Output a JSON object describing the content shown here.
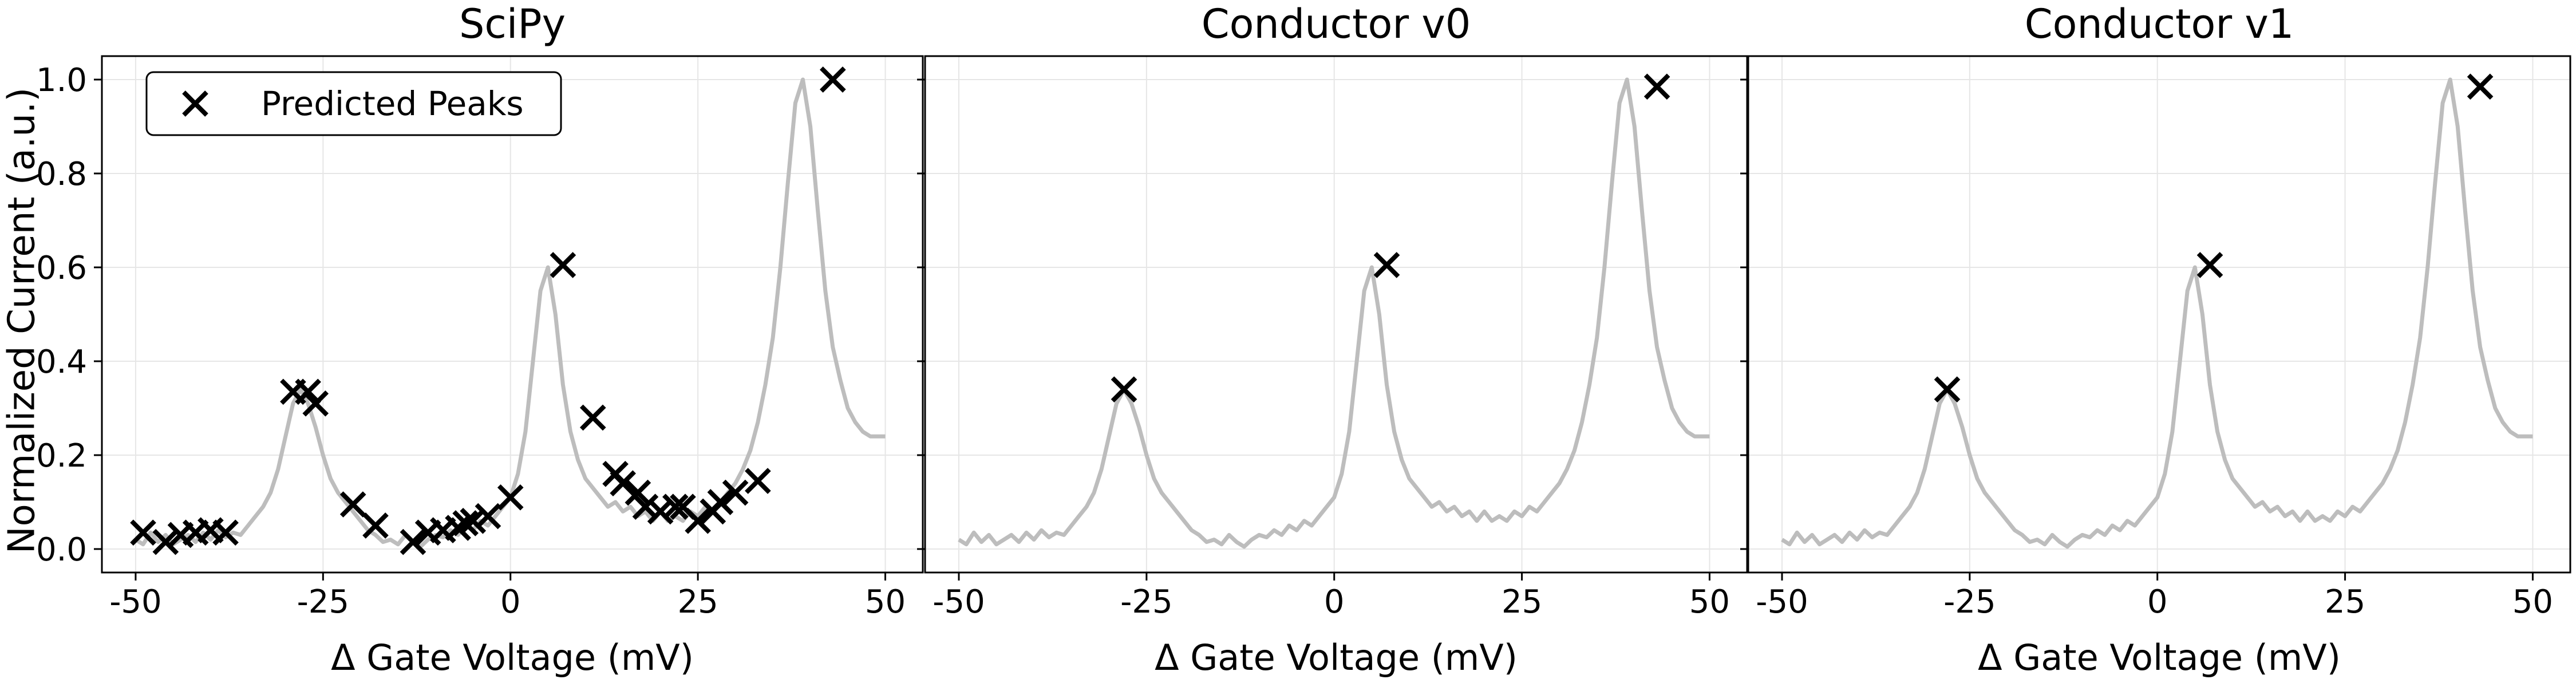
{
  "figure": {
    "ylabel": "Normalized Current (a.u.)",
    "legend_label": "Predicted Peaks",
    "legend_location": "upper-left"
  },
  "colors": {
    "trace": "#bdbdbd",
    "marker": "#000000",
    "grid": "#e6e6e6"
  },
  "trace": {
    "x": [
      -50,
      -49,
      -48,
      -47,
      -46,
      -45,
      -44,
      -43,
      -42,
      -41,
      -40,
      -39,
      -38,
      -37,
      -36,
      -35,
      -34,
      -33,
      -32,
      -31,
      -30,
      -29,
      -28,
      -27,
      -26,
      -25,
      -24,
      -23,
      -22,
      -21,
      -20,
      -19,
      -18,
      -17,
      -16,
      -15,
      -14,
      -13,
      -12,
      -11,
      -10,
      -9,
      -8,
      -7,
      -6,
      -5,
      -4,
      -3,
      -2,
      -1,
      0,
      1,
      2,
      3,
      4,
      5,
      6,
      7,
      8,
      9,
      10,
      11,
      12,
      13,
      14,
      15,
      16,
      17,
      18,
      19,
      20,
      21,
      22,
      23,
      24,
      25,
      26,
      27,
      28,
      29,
      30,
      31,
      32,
      33,
      34,
      35,
      36,
      37,
      38,
      39,
      40,
      41,
      42,
      43,
      44,
      45,
      46,
      47,
      48,
      49,
      50
    ],
    "y": [
      0.02,
      0.01,
      0.035,
      0.015,
      0.03,
      0.01,
      0.02,
      0.03,
      0.015,
      0.035,
      0.02,
      0.04,
      0.025,
      0.035,
      0.03,
      0.05,
      0.07,
      0.09,
      0.12,
      0.17,
      0.24,
      0.31,
      0.34,
      0.31,
      0.26,
      0.2,
      0.15,
      0.12,
      0.1,
      0.08,
      0.06,
      0.04,
      0.03,
      0.015,
      0.02,
      0.01,
      0.03,
      0.015,
      0.005,
      0.02,
      0.03,
      0.025,
      0.04,
      0.03,
      0.05,
      0.04,
      0.06,
      0.05,
      0.07,
      0.09,
      0.11,
      0.16,
      0.25,
      0.4,
      0.55,
      0.6,
      0.5,
      0.35,
      0.25,
      0.19,
      0.15,
      0.13,
      0.11,
      0.09,
      0.1,
      0.08,
      0.09,
      0.07,
      0.08,
      0.06,
      0.08,
      0.06,
      0.07,
      0.06,
      0.08,
      0.07,
      0.09,
      0.08,
      0.1,
      0.12,
      0.14,
      0.17,
      0.21,
      0.27,
      0.35,
      0.45,
      0.6,
      0.78,
      0.95,
      1.0,
      0.9,
      0.72,
      0.55,
      0.43,
      0.36,
      0.3,
      0.27,
      0.25,
      0.24,
      0.24,
      0.24
    ]
  },
  "chart_data": [
    {
      "type": "scatter",
      "title": "SciPy",
      "xlabel": "Δ Gate Voltage (mV)",
      "ylabel": "Normalized Current (a.u.)",
      "xlim": [
        -50,
        50
      ],
      "ylim": [
        0,
        1
      ],
      "xticks": [
        "-50",
        "-25",
        "0",
        "25",
        "50"
      ],
      "yticks": [
        "0.0",
        "0.2",
        "0.4",
        "0.6",
        "0.8",
        "1.0"
      ],
      "grid": true,
      "legend": {
        "location": "upper-left",
        "entries": [
          "Predicted Peaks"
        ]
      },
      "series": [
        {
          "name": "Predicted Peaks",
          "x": [
            -49,
            -46,
            -44,
            -42,
            -40,
            -38,
            -29,
            -27,
            -26,
            -21,
            -18,
            -13,
            -11,
            -9,
            -7,
            -6,
            -5,
            -3,
            0,
            7,
            11,
            14,
            15,
            17,
            18,
            20,
            22,
            23,
            25,
            27,
            28,
            30,
            33,
            43
          ],
          "y": [
            0.035,
            0.015,
            0.03,
            0.035,
            0.04,
            0.035,
            0.335,
            0.335,
            0.31,
            0.095,
            0.05,
            0.015,
            0.035,
            0.04,
            0.045,
            0.055,
            0.06,
            0.07,
            0.11,
            0.605,
            0.28,
            0.16,
            0.14,
            0.12,
            0.09,
            0.08,
            0.09,
            0.09,
            0.06,
            0.08,
            0.1,
            0.12,
            0.145,
            1.0
          ]
        }
      ]
    },
    {
      "type": "scatter",
      "title": "Conductor v0",
      "xlabel": "Δ Gate Voltage (mV)",
      "xlim": [
        -50,
        50
      ],
      "ylim": [
        0,
        1
      ],
      "xticks": [
        "-50",
        "-25",
        "0",
        "25",
        "50"
      ],
      "grid": true,
      "series": [
        {
          "name": "Predicted Peaks",
          "x": [
            -28,
            7,
            43
          ],
          "y": [
            0.34,
            0.605,
            0.985
          ]
        }
      ]
    },
    {
      "type": "scatter",
      "title": "Conductor v1",
      "xlabel": "Δ Gate Voltage (mV)",
      "xlim": [
        -50,
        50
      ],
      "ylim": [
        0,
        1
      ],
      "xticks": [
        "-50",
        "-25",
        "0",
        "25",
        "50"
      ],
      "grid": true,
      "series": [
        {
          "name": "Predicted Peaks",
          "x": [
            -28,
            7,
            43
          ],
          "y": [
            0.34,
            0.605,
            0.985
          ]
        }
      ]
    }
  ]
}
